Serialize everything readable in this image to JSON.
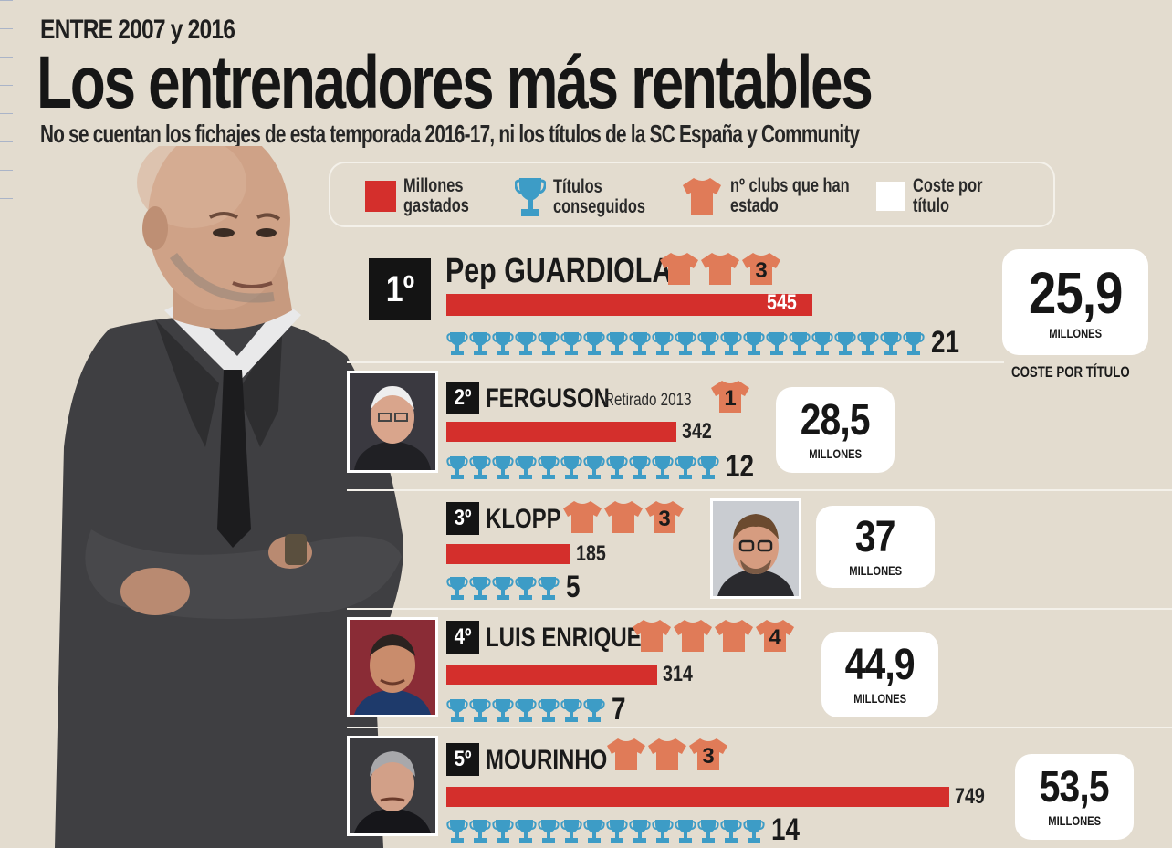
{
  "header": {
    "kicker": "ENTRE 2007 y 2016",
    "title": "Los entrenadores más rentables",
    "subtitle": "No se cuentan los fichajes de esta temporada 2016-17, ni los títulos de la SC España y Community"
  },
  "legend": {
    "spent": "Millones gastados",
    "titles": "Títulos conseguidos",
    "clubs": "nº clubs que han estado",
    "cost": "Coste por título"
  },
  "cost_caption": "COSTE POR TÍTULO",
  "colors": {
    "bar": "#d42f2c",
    "trophy": "#3d9cc6",
    "shirt": "#e07b58",
    "background": "#e3dccf"
  },
  "chart_data": {
    "type": "bar",
    "title": "Los entrenadores más rentables",
    "subtitle": "No se cuentan los fichajes de esta temporada 2016-17, ni los títulos de la SC España y Community",
    "xlabel": "",
    "ylabel": "",
    "categories": [
      "Pep GUARDIOLA",
      "FERGUSON",
      "KLOPP",
      "LUIS ENRIQUE",
      "MOURINHO"
    ],
    "series": [
      {
        "name": "Millones gastados",
        "values": [
          545,
          342,
          185,
          314,
          749
        ]
      },
      {
        "name": "Títulos conseguidos",
        "values": [
          21,
          12,
          5,
          7,
          14
        ]
      },
      {
        "name": "nº clubs que han estado",
        "values": [
          3,
          1,
          3,
          4,
          3
        ]
      },
      {
        "name": "Coste por título",
        "values": [
          25.9,
          28.5,
          37,
          44.9,
          53.5
        ]
      }
    ]
  },
  "rows": [
    {
      "rank": "1º",
      "name": "Pep GUARDIOLA",
      "note": "",
      "spent": 545,
      "spent_label": "545",
      "titles": 21,
      "titles_label": "21",
      "clubs": 3,
      "clubs_label": "3",
      "cost": "25,9",
      "unit": "MILLONES",
      "icon": "coach-photo"
    },
    {
      "rank": "2º",
      "name": "FERGUSON",
      "note": "Retirado 2013",
      "spent": 342,
      "spent_label": "342",
      "titles": 12,
      "titles_label": "12",
      "clubs": 1,
      "clubs_label": "1",
      "cost": "28,5",
      "unit": "MILLONES",
      "icon": "coach-photo"
    },
    {
      "rank": "3º",
      "name": "KLOPP",
      "note": "",
      "spent": 185,
      "spent_label": "185",
      "titles": 5,
      "titles_label": "5",
      "clubs": 3,
      "clubs_label": "3",
      "cost": "37",
      "unit": "MILLONES",
      "icon": "coach-photo"
    },
    {
      "rank": "4º",
      "name": "LUIS ENRIQUE",
      "note": "",
      "spent": 314,
      "spent_label": "314",
      "titles": 7,
      "titles_label": "7",
      "clubs": 4,
      "clubs_label": "4",
      "cost": "44,9",
      "unit": "MILLONES",
      "icon": "coach-photo"
    },
    {
      "rank": "5º",
      "name": "MOURINHO",
      "note": "",
      "spent": 749,
      "spent_label": "749",
      "titles": 14,
      "titles_label": "14",
      "clubs": 3,
      "clubs_label": "3",
      "cost": "53,5",
      "unit": "MILLONES",
      "icon": "coach-photo"
    }
  ]
}
